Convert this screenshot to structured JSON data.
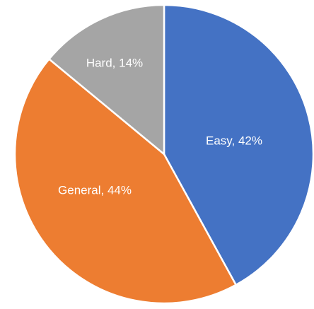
{
  "chart_data": {
    "type": "pie",
    "slices": [
      {
        "label": "Easy",
        "value": 42,
        "display": "Easy, 42%",
        "color": "#4472C4"
      },
      {
        "label": "General",
        "value": 44,
        "display": "General, 44%",
        "color": "#ED7D31"
      },
      {
        "label": "Hard",
        "value": 14,
        "display": "Hard, 14%",
        "color": "#A5A5A5"
      }
    ],
    "start_angle": "12 o'clock",
    "direction": "clockwise",
    "legend": "none",
    "data_labels": "inside"
  }
}
